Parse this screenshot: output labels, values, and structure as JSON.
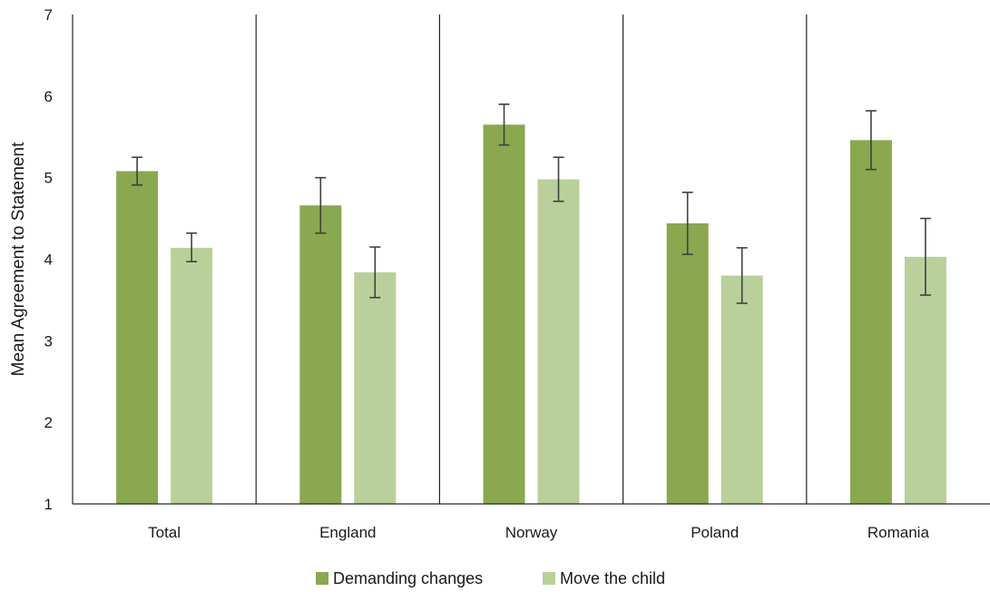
{
  "chart_data": {
    "type": "bar",
    "ylabel": "Mean Agreement to Statement",
    "ylim": [
      1,
      7
    ],
    "yticks": [
      1,
      2,
      3,
      4,
      5,
      6,
      7
    ],
    "categories": [
      "Total",
      "England",
      "Norway",
      "Poland",
      "Romania"
    ],
    "series": [
      {
        "name": "Demanding changes",
        "color": "#8aa84f",
        "values": [
          5.08,
          4.66,
          5.65,
          4.44,
          5.46
        ],
        "error_low": [
          4.91,
          4.32,
          5.4,
          4.06,
          5.1
        ],
        "error_high": [
          5.25,
          5.0,
          5.9,
          4.82,
          5.82
        ]
      },
      {
        "name": "Move the child",
        "color": "#b9d09a",
        "values": [
          4.14,
          3.84,
          4.98,
          3.8,
          4.03
        ],
        "error_low": [
          3.97,
          3.53,
          4.71,
          3.46,
          3.56
        ],
        "error_high": [
          4.32,
          4.15,
          5.25,
          4.14,
          4.5
        ]
      }
    ],
    "grid": false,
    "category_separators": true,
    "legend_position": "bottom",
    "error_bar_color": "#404040"
  }
}
